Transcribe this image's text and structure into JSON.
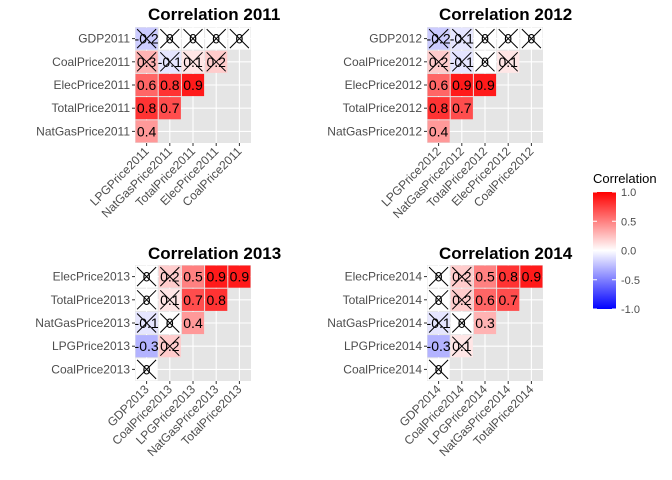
{
  "chart_data": [
    {
      "type": "heatmap",
      "title": "Correlation 2011",
      "y_categories": [
        "GDP2011",
        "CoalPrice2011",
        "ElecPrice2011",
        "TotalPrice2011",
        "NatGasPrice2011"
      ],
      "x_categories": [
        "LPGPrice2011",
        "NatGasPrice2011",
        "TotalPrice2011",
        "ElecPrice2011",
        "CoalPrice2011"
      ],
      "rows": [
        [
          -0.2,
          0,
          0,
          0,
          0
        ],
        [
          0.3,
          -0.1,
          0.1,
          0.2,
          null
        ],
        [
          0.6,
          0.8,
          0.9,
          null,
          null
        ],
        [
          0.8,
          0.7,
          null,
          null,
          null
        ],
        [
          0.4,
          null,
          null,
          null,
          null
        ]
      ],
      "labels": [
        [
          "-0.2",
          "0",
          "0",
          "0",
          "0"
        ],
        [
          "0.3",
          "-0.1",
          "0.1",
          "0.2",
          null
        ],
        [
          "0.6",
          "0.8",
          "0.9",
          null,
          null
        ],
        [
          "0.8",
          "0.7",
          null,
          null,
          null
        ],
        [
          "0.4",
          null,
          null,
          null,
          null
        ]
      ],
      "crossed": [
        [
          true,
          true,
          true,
          true,
          true
        ],
        [
          true,
          true,
          true,
          true,
          false
        ],
        [
          false,
          false,
          false,
          false,
          false
        ],
        [
          false,
          false,
          false,
          false,
          false
        ],
        [
          false,
          false,
          false,
          false,
          false
        ]
      ]
    },
    {
      "type": "heatmap",
      "title": "Correlation 2012",
      "y_categories": [
        "GDP2012",
        "CoalPrice2012",
        "ElecPrice2012",
        "TotalPrice2012",
        "NatGasPrice2012"
      ],
      "x_categories": [
        "LPGPrice2012",
        "NatGasPrice2012",
        "TotalPrice2012",
        "ElecPrice2012",
        "CoalPrice2012"
      ],
      "rows": [
        [
          -0.2,
          -0.1,
          0,
          0,
          0
        ],
        [
          0.2,
          -0.1,
          0,
          0.1,
          null
        ],
        [
          0.6,
          0.9,
          0.9,
          null,
          null
        ],
        [
          0.8,
          0.7,
          null,
          null,
          null
        ],
        [
          0.4,
          null,
          null,
          null,
          null
        ]
      ],
      "labels": [
        [
          "-0.2",
          "-0.1",
          "0",
          "0",
          "0"
        ],
        [
          "0.2",
          "-0.1",
          "0",
          "0.1",
          null
        ],
        [
          "0.6",
          "0.9",
          "0.9",
          null,
          null
        ],
        [
          "0.8",
          "0.7",
          null,
          null,
          null
        ],
        [
          "0.4",
          null,
          null,
          null,
          null
        ]
      ],
      "crossed": [
        [
          true,
          true,
          true,
          true,
          true
        ],
        [
          true,
          true,
          true,
          true,
          false
        ],
        [
          false,
          false,
          false,
          false,
          false
        ],
        [
          false,
          false,
          false,
          false,
          false
        ],
        [
          false,
          false,
          false,
          false,
          false
        ]
      ]
    },
    {
      "type": "heatmap",
      "title": "Correlation 2013",
      "y_categories": [
        "ElecPrice2013",
        "TotalPrice2013",
        "NatGasPrice2013",
        "LPGPrice2013",
        "CoalPrice2013"
      ],
      "x_categories": [
        "GDP2013",
        "CoalPrice2013",
        "LPGPrice2013",
        "NatGasPrice2013",
        "TotalPrice2013"
      ],
      "rows": [
        [
          0,
          0.2,
          0.5,
          0.9,
          0.9
        ],
        [
          0,
          0.1,
          0.7,
          0.8,
          null
        ],
        [
          -0.1,
          0,
          0.4,
          null,
          null
        ],
        [
          -0.3,
          0.2,
          null,
          null,
          null
        ],
        [
          0,
          null,
          null,
          null,
          null
        ]
      ],
      "labels": [
        [
          "0",
          "0.2",
          "0.5",
          "0.9",
          "0.9"
        ],
        [
          "0",
          "0.1",
          "0.7",
          "0.8",
          null
        ],
        [
          "-0.1",
          "0",
          "0.4",
          null,
          null
        ],
        [
          "-0.3",
          "0.2",
          null,
          null,
          null
        ],
        [
          "0",
          null,
          null,
          null,
          null
        ]
      ],
      "crossed": [
        [
          true,
          true,
          false,
          false,
          false
        ],
        [
          true,
          true,
          false,
          false,
          false
        ],
        [
          true,
          true,
          false,
          false,
          false
        ],
        [
          false,
          true,
          false,
          false,
          false
        ],
        [
          true,
          false,
          false,
          false,
          false
        ]
      ]
    },
    {
      "type": "heatmap",
      "title": "Correlation 2014",
      "y_categories": [
        "ElecPrice2014",
        "TotalPrice2014",
        "NatGasPrice2014",
        "LPGPrice2014",
        "CoalPrice2014"
      ],
      "x_categories": [
        "GDP2014",
        "CoalPrice2014",
        "LPGPrice2014",
        "NatGasPrice2014",
        "TotalPrice2014"
      ],
      "rows": [
        [
          0,
          0.2,
          0.5,
          0.8,
          0.9
        ],
        [
          0,
          0.2,
          0.6,
          0.7,
          null
        ],
        [
          -0.1,
          0,
          0.3,
          null,
          null
        ],
        [
          -0.3,
          0.1,
          null,
          null,
          null
        ],
        [
          0,
          null,
          null,
          null,
          null
        ]
      ],
      "labels": [
        [
          "0",
          "0.2",
          "0.5",
          "0.8",
          "0.9"
        ],
        [
          "0",
          "0.2",
          "0.6",
          "0.7",
          null
        ],
        [
          "-0.1",
          "0",
          "0.3",
          null,
          null
        ],
        [
          "-0.3",
          "0.1",
          null,
          null,
          null
        ],
        [
          "0",
          null,
          null,
          null,
          null
        ]
      ],
      "crossed": [
        [
          true,
          true,
          false,
          false,
          false
        ],
        [
          true,
          true,
          false,
          false,
          false
        ],
        [
          true,
          true,
          false,
          false,
          false
        ],
        [
          false,
          true,
          false,
          false,
          false
        ],
        [
          true,
          false,
          false,
          false,
          false
        ]
      ]
    }
  ],
  "legend": {
    "title": "Correlation",
    "ticks": [
      1.0,
      0.5,
      0.0,
      -0.5,
      -1.0
    ],
    "tick_labels": [
      "1.0",
      "0.5",
      "0.0",
      "-0.5",
      "-1.0"
    ],
    "range": [
      -1,
      1
    ],
    "colors": {
      "low": "#0000ff",
      "mid": "#ffffff",
      "high": "#ff0000"
    }
  },
  "theme": {
    "panel_bg": "#e5e5e5",
    "grid": "#ffffff"
  }
}
